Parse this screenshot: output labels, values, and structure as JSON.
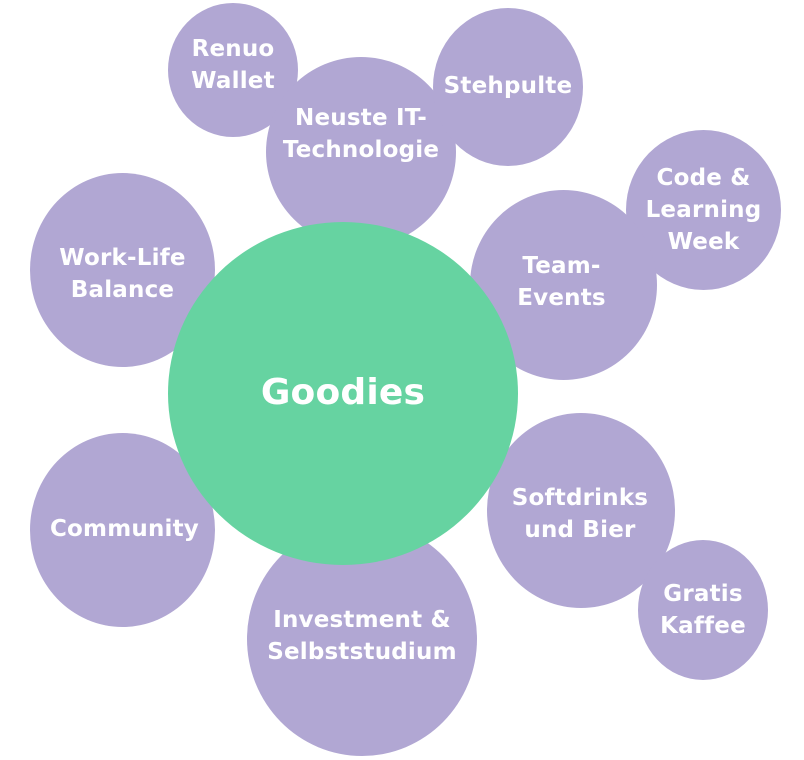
{
  "colors": {
    "center": "#66d3a1",
    "bubble": "#b1a7d3",
    "text": "#ffffff"
  },
  "center": {
    "label": "Goodies"
  },
  "bubbles": [
    {
      "id": "renuo",
      "lines": [
        "Renuo",
        "Wallet"
      ]
    },
    {
      "id": "it",
      "lines": [
        "Neuste IT-",
        "Technologie"
      ]
    },
    {
      "id": "stehpulte",
      "lines": [
        "Stehpulte"
      ]
    },
    {
      "id": "code",
      "lines": [
        "Code &",
        "Learning",
        "Week"
      ]
    },
    {
      "id": "team",
      "lines": [
        "Team-",
        "Events"
      ]
    },
    {
      "id": "worklife",
      "lines": [
        "Work-Life",
        "Balance"
      ]
    },
    {
      "id": "community",
      "lines": [
        "Community"
      ]
    },
    {
      "id": "soft",
      "lines": [
        "Softdrinks",
        "und Bier"
      ]
    },
    {
      "id": "kaffee",
      "lines": [
        "Gratis",
        "Kaffee"
      ]
    },
    {
      "id": "invest",
      "lines": [
        "Investment &",
        "Selbststudium"
      ]
    }
  ]
}
